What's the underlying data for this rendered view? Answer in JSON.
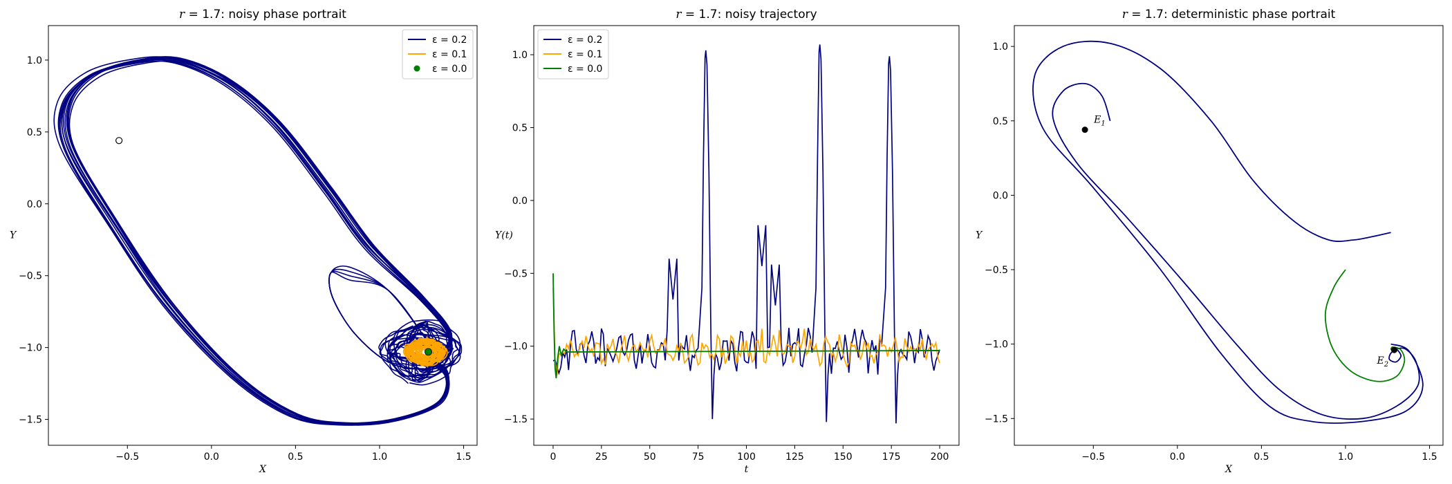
{
  "chart_data": [
    {
      "type": "line",
      "id": "left",
      "title": "r = 1.7: noisy phase portrait",
      "xlabel": "X",
      "ylabel": "Y",
      "xlim": [
        -0.97,
        1.58
      ],
      "ylim": [
        -1.68,
        1.24
      ],
      "xticks": [
        -0.5,
        0.0,
        0.5,
        1.0,
        1.5
      ],
      "yticks": [
        -1.5,
        -1.0,
        -0.5,
        0.0,
        0.5,
        1.0
      ],
      "xtick_labels": [
        "−0.5",
        "0.0",
        "0.5",
        "1.0",
        "1.5"
      ],
      "ytick_labels": [
        "−1.5",
        "−1.0",
        "−0.5",
        "0.0",
        "0.5",
        "1.0"
      ],
      "legend": {
        "position": "upper right",
        "entries": [
          {
            "label": "ε = 0.2",
            "color": "#000080",
            "kind": "line"
          },
          {
            "label": "ε = 0.1",
            "color": "#ffa500",
            "kind": "line"
          },
          {
            "label": "ε = 0.0",
            "color": "#008000",
            "kind": "dot"
          }
        ]
      },
      "series": [
        {
          "name": "ε = 0.2",
          "color": "#000080",
          "loops": 12,
          "limit_cycle_center": [
            1.25,
            -1.03
          ],
          "excursion_points": [
            [
              1.27,
              -1.07
            ],
            [
              1.4,
              -1.18
            ],
            [
              1.36,
              -1.38
            ],
            [
              1.1,
              -1.5
            ],
            [
              0.8,
              -1.53
            ],
            [
              0.5,
              -1.47
            ],
            [
              0.15,
              -1.2
            ],
            [
              -0.25,
              -0.7
            ],
            [
              -0.6,
              -0.1
            ],
            [
              -0.85,
              0.4
            ],
            [
              -0.86,
              0.7
            ],
            [
              -0.7,
              0.9
            ],
            [
              -0.45,
              0.99
            ],
            [
              -0.2,
              1.0
            ],
            [
              0.1,
              0.85
            ],
            [
              0.4,
              0.55
            ],
            [
              0.7,
              0.1
            ],
            [
              0.95,
              -0.3
            ],
            [
              1.25,
              -0.65
            ],
            [
              1.42,
              -0.9
            ],
            [
              1.38,
              -1.05
            ]
          ]
        },
        {
          "name": "ε = 0.1",
          "color": "#ffa500",
          "center": [
            1.27,
            -1.03
          ],
          "radius": [
            0.12,
            0.09
          ]
        },
        {
          "name": "ε = 0.0",
          "color": "#008000",
          "point": [
            1.29,
            -1.03
          ]
        }
      ],
      "markers": [
        {
          "type": "open-circle",
          "point": [
            -0.55,
            0.44
          ]
        }
      ]
    },
    {
      "type": "line",
      "id": "middle",
      "title": "r = 1.7: noisy trajectory",
      "xlabel": "t",
      "ylabel": "Y(t)",
      "xlim": [
        -10,
        210
      ],
      "ylim": [
        -1.68,
        1.2
      ],
      "xticks": [
        0,
        25,
        50,
        75,
        100,
        125,
        150,
        175,
        200
      ],
      "yticks": [
        -1.5,
        -1.0,
        -0.5,
        0.0,
        0.5,
        1.0
      ],
      "xtick_labels": [
        "0",
        "25",
        "50",
        "75",
        "100",
        "125",
        "150",
        "175",
        "200"
      ],
      "ytick_labels": [
        "−1.5",
        "−1.0",
        "−0.5",
        "0.0",
        "0.5",
        "1.0"
      ],
      "legend": {
        "position": "upper left",
        "entries": [
          {
            "label": "ε = 0.2",
            "color": "#000080",
            "kind": "line"
          },
          {
            "label": "ε = 0.1",
            "color": "#ffa500",
            "kind": "line"
          },
          {
            "label": "ε = 0.0",
            "color": "#008000",
            "kind": "line"
          }
        ]
      },
      "series": [
        {
          "name": "ε = 0.2",
          "color": "#000080",
          "spikes": [
            {
              "t": 79,
              "peak": 1.03,
              "trough": -1.5
            },
            {
              "t": 138,
              "peak": 1.07,
              "trough": -1.52
            },
            {
              "t": 174,
              "peak": 0.99,
              "trough": -1.53
            }
          ],
          "small_peaks": [
            [
              108,
              -0.45
            ],
            [
              62,
              -0.68
            ],
            [
              115,
              -0.72
            ]
          ],
          "baseline": -1.03
        },
        {
          "name": "ε = 0.1",
          "color": "#ffa500",
          "baseline": -1.03
        },
        {
          "name": "ε = 0.0",
          "color": "#008000",
          "start": -0.5,
          "dip": -1.22,
          "equilibrium": -1.03
        }
      ]
    },
    {
      "type": "line",
      "id": "right",
      "title": "r = 1.7: deterministic phase portrait",
      "xlabel": "X",
      "ylabel": "Y",
      "xlim": [
        -0.97,
        1.58
      ],
      "ylim": [
        -1.68,
        1.14
      ],
      "xticks": [
        -0.5,
        0.0,
        0.5,
        1.0,
        1.5
      ],
      "yticks": [
        -1.5,
        -1.0,
        -0.5,
        0.0,
        0.5,
        1.0
      ],
      "xtick_labels": [
        "−0.5",
        "0.0",
        "0.5",
        "1.0",
        "1.5"
      ],
      "ytick_labels": [
        "−1.5",
        "−1.0",
        "−0.5",
        "0.0",
        "0.5",
        "1.0"
      ],
      "series": [
        {
          "color": "#000080",
          "points": [
            [
              -0.4,
              0.5
            ],
            [
              -0.45,
              0.67
            ],
            [
              -0.55,
              0.75
            ],
            [
              -0.68,
              0.7
            ],
            [
              -0.74,
              0.52
            ],
            [
              -0.6,
              0.22
            ],
            [
              -0.3,
              -0.15
            ],
            [
              0.05,
              -0.6
            ],
            [
              0.35,
              -1.0
            ],
            [
              0.6,
              -1.3
            ],
            [
              0.85,
              -1.47
            ],
            [
              1.1,
              -1.5
            ],
            [
              1.3,
              -1.42
            ],
            [
              1.43,
              -1.28
            ],
            [
              1.42,
              -1.12
            ],
            [
              1.35,
              -1.03
            ],
            [
              1.28,
              -1.05
            ],
            [
              1.26,
              -1.1
            ],
            [
              1.3,
              -1.12
            ],
            [
              1.33,
              -1.08
            ],
            [
              1.31,
              -1.04
            ]
          ]
        },
        {
          "color": "#000080",
          "points": [
            [
              1.27,
              -1.0
            ],
            [
              1.38,
              -1.05
            ],
            [
              1.46,
              -1.28
            ],
            [
              1.36,
              -1.45
            ],
            [
              1.1,
              -1.52
            ],
            [
              0.8,
              -1.52
            ],
            [
              0.55,
              -1.42
            ],
            [
              0.25,
              -1.05
            ],
            [
              -0.1,
              -0.5
            ],
            [
              -0.5,
              0.05
            ],
            [
              -0.8,
              0.45
            ],
            [
              -0.85,
              0.8
            ],
            [
              -0.68,
              1.0
            ],
            [
              -0.4,
              1.02
            ],
            [
              -0.1,
              0.85
            ],
            [
              0.2,
              0.5
            ],
            [
              0.45,
              0.1
            ],
            [
              0.7,
              -0.18
            ],
            [
              0.9,
              -0.3
            ],
            [
              1.05,
              -0.3
            ],
            [
              1.15,
              -0.28
            ],
            [
              1.27,
              -0.25
            ]
          ]
        },
        {
          "color": "#008000",
          "points": [
            [
              1.0,
              -0.5
            ],
            [
              0.93,
              -0.62
            ],
            [
              0.88,
              -0.8
            ],
            [
              0.92,
              -1.02
            ],
            [
              1.03,
              -1.18
            ],
            [
              1.18,
              -1.25
            ],
            [
              1.3,
              -1.22
            ],
            [
              1.35,
              -1.12
            ],
            [
              1.33,
              -1.04
            ],
            [
              1.28,
              -1.02
            ],
            [
              1.27,
              -1.04
            ]
          ]
        }
      ],
      "equilibria": [
        {
          "name": "E",
          "sub": "1",
          "point": [
            -0.55,
            0.44
          ]
        },
        {
          "name": "E",
          "sub": "2",
          "point": [
            1.29,
            -1.04
          ]
        }
      ]
    }
  ]
}
